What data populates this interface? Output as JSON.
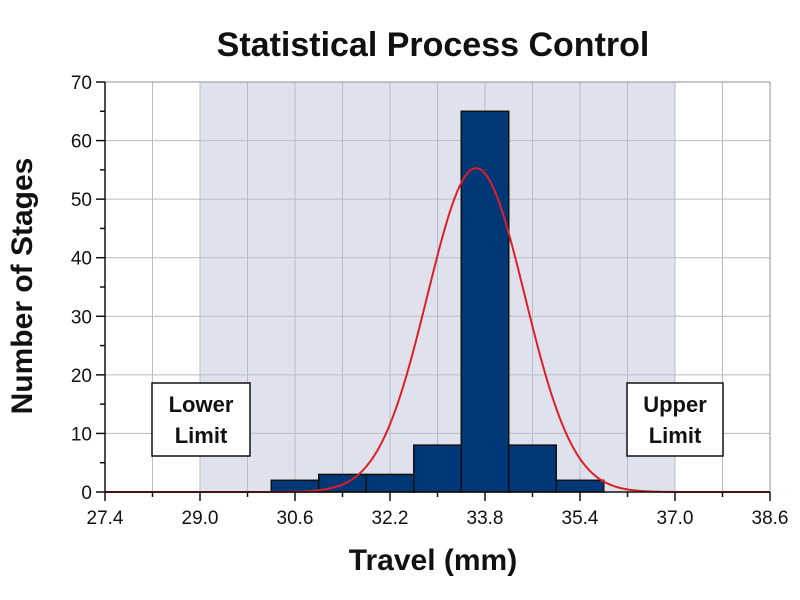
{
  "chart_data": {
    "type": "bar",
    "title": "Statistical Process Control",
    "xlabel": "Travel (mm)",
    "ylabel": "Number of Stages",
    "xlim": [
      27.4,
      38.6
    ],
    "ylim": [
      0,
      70
    ],
    "x_ticks": [
      "27.4",
      "29.0",
      "30.6",
      "32.2",
      "33.8",
      "35.4",
      "37.0",
      "38.6"
    ],
    "y_ticks": [
      "0",
      "10",
      "20",
      "30",
      "40",
      "50",
      "60",
      "70"
    ],
    "grid": true,
    "bins": [
      {
        "start": 30.2,
        "end": 31.0,
        "count": 2
      },
      {
        "start": 31.0,
        "end": 31.8,
        "count": 3
      },
      {
        "start": 31.8,
        "end": 32.6,
        "count": 3
      },
      {
        "start": 32.6,
        "end": 33.4,
        "count": 8
      },
      {
        "start": 33.4,
        "end": 34.2,
        "count": 65
      },
      {
        "start": 34.2,
        "end": 35.0,
        "count": 8
      },
      {
        "start": 35.0,
        "end": 35.8,
        "count": 2
      }
    ],
    "fit_curve": {
      "type": "normal",
      "mean": 33.65,
      "sd": 0.82,
      "peak": 55.3,
      "color": "#dd1f26"
    },
    "spec_band": {
      "lower": 29.0,
      "upper": 37.0,
      "color": "#dfe2ec"
    },
    "lower_limit_label": [
      "Lower",
      "Limit"
    ],
    "upper_limit_label": [
      "Upper",
      "Limit"
    ],
    "bar_color": "#003776"
  }
}
